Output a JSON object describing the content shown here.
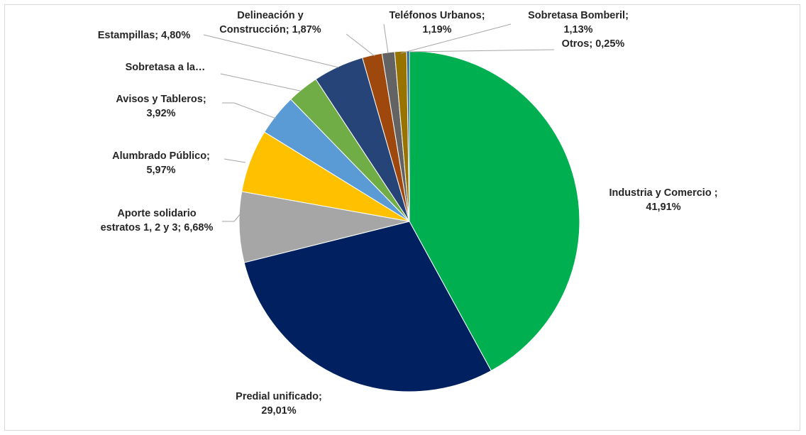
{
  "chart_data": {
    "type": "pie",
    "title": "",
    "start_angle_deg": 0,
    "direction": "clockwise",
    "slices": [
      {
        "name": "Industria y Comercio ;",
        "value": 41.91,
        "label": [
          "Industria y Comercio ;",
          "41,91%"
        ],
        "color": "#00b050"
      },
      {
        "name": "Predial unificado;",
        "value": 29.01,
        "label": [
          "Predial unificado;",
          "29,01%"
        ],
        "color": "#002060"
      },
      {
        "name": "Aporte solidario estratos 1, 2 y 3;",
        "value": 6.68,
        "label": [
          "Aporte solidario",
          "estratos 1, 2 y 3; 6,68%"
        ],
        "color": "#a6a6a6"
      },
      {
        "name": "Alumbrado Público;",
        "value": 5.97,
        "label": [
          "Alumbrado Público;",
          "5,97%"
        ],
        "color": "#ffc000"
      },
      {
        "name": "Avisos y Tableros;",
        "value": 3.92,
        "label": [
          "Avisos y Tableros;",
          "3,92%"
        ],
        "color": "#5b9bd5"
      },
      {
        "name": "Sobretasa a la…",
        "value": 3.0,
        "label": [
          "Sobretasa a la…"
        ],
        "color": "#70ad47"
      },
      {
        "name": "Estampillas;",
        "value": 4.8,
        "label": [
          "Estampillas; 4,80%"
        ],
        "color": "#264478"
      },
      {
        "name": "Delineación y Construcción;",
        "value": 1.87,
        "label": [
          "Delineación y",
          "Construcción; 1,87%"
        ],
        "color": "#9e480e"
      },
      {
        "name": "Teléfonos Urbanos;",
        "value": 1.19,
        "label": [
          "Teléfonos Urbanos;",
          "1,19%"
        ],
        "color": "#636363"
      },
      {
        "name": "Sobretasa Bomberil;",
        "value": 1.13,
        "label": [
          "Sobretasa Bomberil;",
          "1,13%"
        ],
        "color": "#997300"
      },
      {
        "name": "Otros;",
        "value": 0.25,
        "label": [
          "Otros; 0,25%"
        ],
        "color": "#255e91"
      }
    ]
  }
}
